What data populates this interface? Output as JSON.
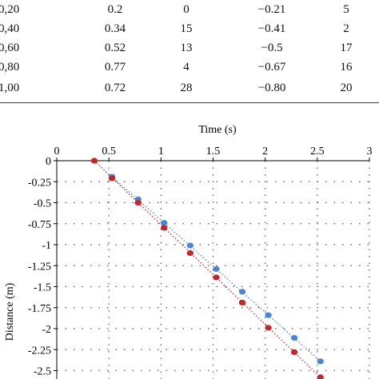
{
  "table": {
    "rows": [
      [
        "0,20",
        "0.2",
        "0",
        "−0.21",
        "5"
      ],
      [
        "0,40",
        "0.34",
        "15",
        "−0.41",
        "2"
      ],
      [
        "0,60",
        "0.52",
        "13",
        "−0.5",
        "17"
      ],
      [
        "0,80",
        "0.77",
        "4",
        "−0.67",
        "16"
      ],
      [
        "1,00",
        "0.72",
        "28",
        "−0.80",
        "20"
      ]
    ]
  },
  "chart_data": {
    "type": "scatter",
    "title": "",
    "xlabel": "Time (s)",
    "ylabel": "Distance (m)",
    "xlim": [
      0,
      3
    ],
    "ylim": [
      -2.6,
      0
    ],
    "x_ticks": [
      "0",
      "0.5",
      "1",
      "1.5",
      "2",
      "2.5",
      "3"
    ],
    "y_ticks": [
      "0",
      "-0.25",
      "-0.5",
      "-0.75",
      "-1",
      "-1.25",
      "-1.5",
      "-1.75",
      "-2",
      "-2.25",
      "-2.5"
    ],
    "grid": true,
    "series": [
      {
        "color": "#4a86d4",
        "trend_line": true,
        "points": [
          [
            0.53,
            -0.19
          ],
          [
            0.78,
            -0.46
          ],
          [
            1.03,
            -0.74
          ],
          [
            1.28,
            -1.01
          ],
          [
            1.53,
            -1.29
          ],
          [
            1.78,
            -1.56
          ],
          [
            2.03,
            -1.84
          ],
          [
            2.28,
            -2.11
          ],
          [
            2.53,
            -2.39
          ]
        ]
      },
      {
        "color": "#c0282a",
        "trend_line": true,
        "points": [
          [
            0.36,
            0.0
          ],
          [
            0.53,
            -0.21
          ],
          [
            0.78,
            -0.5
          ],
          [
            1.03,
            -0.8
          ],
          [
            1.28,
            -1.1
          ],
          [
            1.53,
            -1.39
          ],
          [
            1.78,
            -1.69
          ],
          [
            2.03,
            -1.99
          ],
          [
            2.28,
            -2.28
          ],
          [
            2.53,
            -2.58
          ]
        ]
      }
    ]
  }
}
